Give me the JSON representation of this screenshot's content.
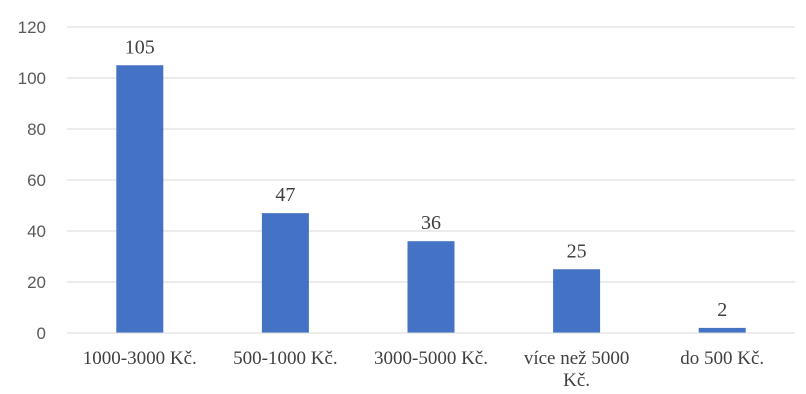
{
  "chart_data": {
    "type": "bar",
    "categories": [
      "1000-3000 Kč.",
      "500-1000 Kč.",
      "3000-5000 Kč.",
      "více než 5000 Kč.",
      "do 500 Kč."
    ],
    "category_lines": [
      [
        "1000-3000 Kč."
      ],
      [
        "500-1000 Kč."
      ],
      [
        "3000-5000 Kč."
      ],
      [
        "více než 5000",
        "Kč."
      ],
      [
        "do 500 Kč."
      ]
    ],
    "values": [
      105,
      47,
      36,
      25,
      2
    ],
    "data_labels": [
      "105",
      "47",
      "36",
      "25",
      "2"
    ],
    "ylim": [
      0,
      120
    ],
    "yticks": [
      0,
      20,
      40,
      60,
      80,
      100,
      120
    ],
    "ytick_labels": [
      "0",
      "20",
      "40",
      "60",
      "80",
      "100",
      "120"
    ],
    "grid": true,
    "title": "",
    "xlabel": "",
    "ylabel": "",
    "bar_color": "#4472C4",
    "grid_color": "#D9D9D9"
  }
}
